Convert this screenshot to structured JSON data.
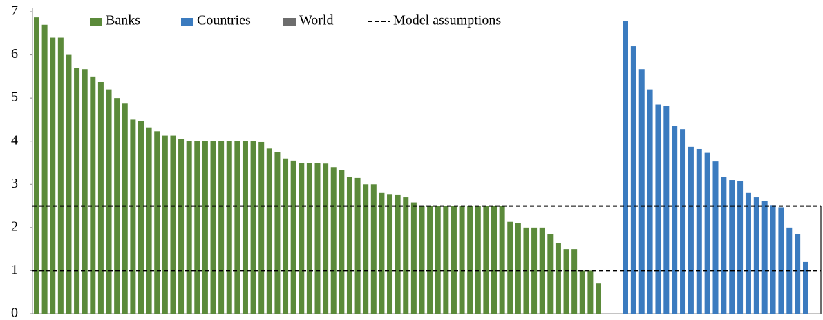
{
  "chart_data": {
    "type": "bar",
    "series": [
      {
        "name": "Banks",
        "color": "#5b8a3a",
        "values": [
          6.87,
          6.7,
          6.4,
          6.4,
          6.0,
          5.7,
          5.67,
          5.5,
          5.37,
          5.2,
          5.0,
          4.87,
          4.5,
          4.47,
          4.32,
          4.23,
          4.13,
          4.13,
          4.05,
          4.0,
          4.0,
          4.0,
          4.0,
          4.0,
          4.0,
          4.0,
          4.0,
          4.0,
          3.98,
          3.83,
          3.75,
          3.6,
          3.55,
          3.5,
          3.5,
          3.5,
          3.48,
          3.4,
          3.33,
          3.17,
          3.15,
          3.0,
          3.0,
          2.8,
          2.76,
          2.75,
          2.7,
          2.58,
          2.5,
          2.5,
          2.5,
          2.5,
          2.5,
          2.5,
          2.5,
          2.5,
          2.5,
          2.5,
          2.5,
          2.13,
          2.1,
          2.0,
          2.0,
          2.0,
          1.85,
          1.63,
          1.5,
          1.5,
          1.0,
          1.0,
          0.7
        ]
      },
      {
        "name": "Countries",
        "color": "#3b7bbf",
        "values": [
          6.78,
          6.2,
          5.67,
          5.2,
          4.85,
          4.82,
          4.35,
          4.28,
          3.87,
          3.82,
          3.73,
          3.53,
          3.17,
          3.1,
          3.08,
          2.8,
          2.7,
          2.62,
          2.52,
          2.47,
          2.0,
          1.85,
          1.2
        ]
      },
      {
        "name": "World",
        "color": "#6d6d6d",
        "values": [
          2.5
        ]
      },
      {
        "name": "Model assumptions",
        "color": "#000000",
        "type": "hline",
        "values": [
          1.0,
          2.5
        ]
      }
    ],
    "ylim": [
      0,
      7
    ],
    "yticks": [
      0,
      1,
      2,
      3,
      4,
      5,
      6,
      7
    ],
    "grid": false
  }
}
